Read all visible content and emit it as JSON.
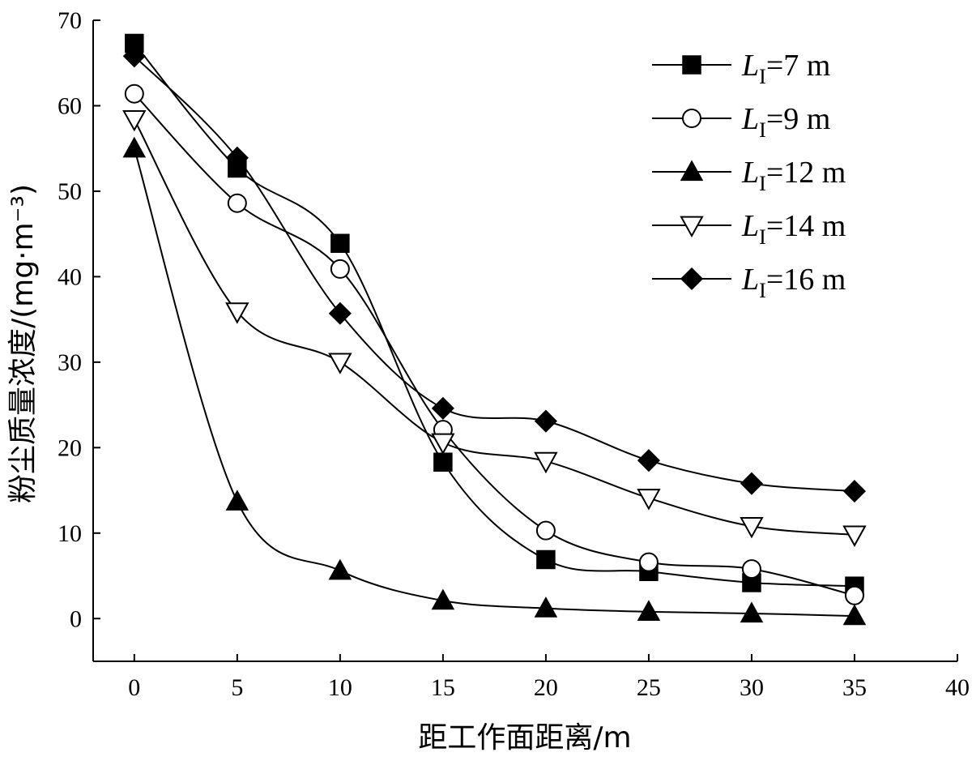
{
  "chart_data": {
    "type": "line",
    "xlabel": "距工作面距离/m",
    "ylabel": "粉尘质量浓度/(mg·m⁻³)",
    "xlim": [
      -2,
      40
    ],
    "ylim": [
      -5,
      70
    ],
    "xticks": [
      0,
      5,
      10,
      15,
      20,
      25,
      30,
      35,
      40
    ],
    "yticks": [
      0,
      10,
      20,
      30,
      40,
      50,
      60,
      70
    ],
    "grid": false,
    "legend_position": "top-right",
    "x": [
      0,
      5,
      10,
      15,
      20,
      25,
      30,
      35
    ],
    "series": [
      {
        "name_prefix": "L",
        "name_sub": "I",
        "name_suffix": "=7 m",
        "marker": "square-filled",
        "values": [
          67.3,
          52.7,
          43.9,
          18.3,
          6.9,
          5.5,
          4.2,
          3.8
        ]
      },
      {
        "name_prefix": "L",
        "name_sub": "I",
        "name_suffix": "=9 m",
        "marker": "circle-open",
        "values": [
          61.4,
          48.6,
          40.9,
          22.1,
          10.3,
          6.6,
          5.8,
          2.7
        ]
      },
      {
        "name_prefix": "L",
        "name_sub": "I",
        "name_suffix": "=12 m",
        "marker": "triangle-up-filled",
        "values": [
          55.0,
          13.7,
          5.6,
          2.1,
          1.2,
          0.8,
          0.6,
          0.3
        ]
      },
      {
        "name_prefix": "L",
        "name_sub": "I",
        "name_suffix": "=14 m",
        "marker": "triangle-down-open",
        "values": [
          58.4,
          35.9,
          30.0,
          20.6,
          18.4,
          14.1,
          10.8,
          9.8
        ]
      },
      {
        "name_prefix": "L",
        "name_sub": "I",
        "name_suffix": "=16 m",
        "marker": "diamond-filled",
        "values": [
          65.8,
          53.9,
          35.7,
          24.6,
          23.1,
          18.5,
          15.8,
          14.9
        ]
      }
    ]
  }
}
